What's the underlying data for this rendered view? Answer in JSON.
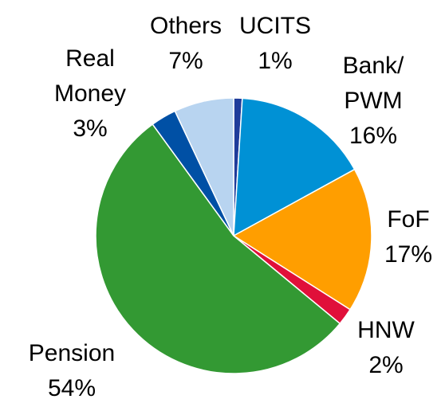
{
  "chart_data": {
    "type": "pie",
    "categories": [
      "UCITS",
      "Bank/ PWM",
      "FoF",
      "HNW",
      "Pension",
      "Real Money",
      "Others"
    ],
    "values": [
      1,
      16,
      17,
      2,
      54,
      3,
      7
    ],
    "value_labels": [
      "1%",
      "16%",
      "17%",
      "2%",
      "54%",
      "3%",
      "7%"
    ],
    "colors": [
      "#1f3c9b",
      "#0091d5",
      "#ff9e00",
      "#e0103a",
      "#339933",
      "#0050a5",
      "#b8d4f0"
    ]
  }
}
